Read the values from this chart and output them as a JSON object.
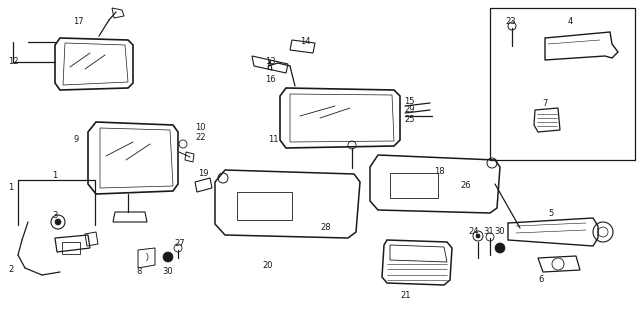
{
  "bg_color": "#ffffff",
  "line_color": "#1a1a1a",
  "fig_width": 6.4,
  "fig_height": 3.15,
  "dpi": 100
}
